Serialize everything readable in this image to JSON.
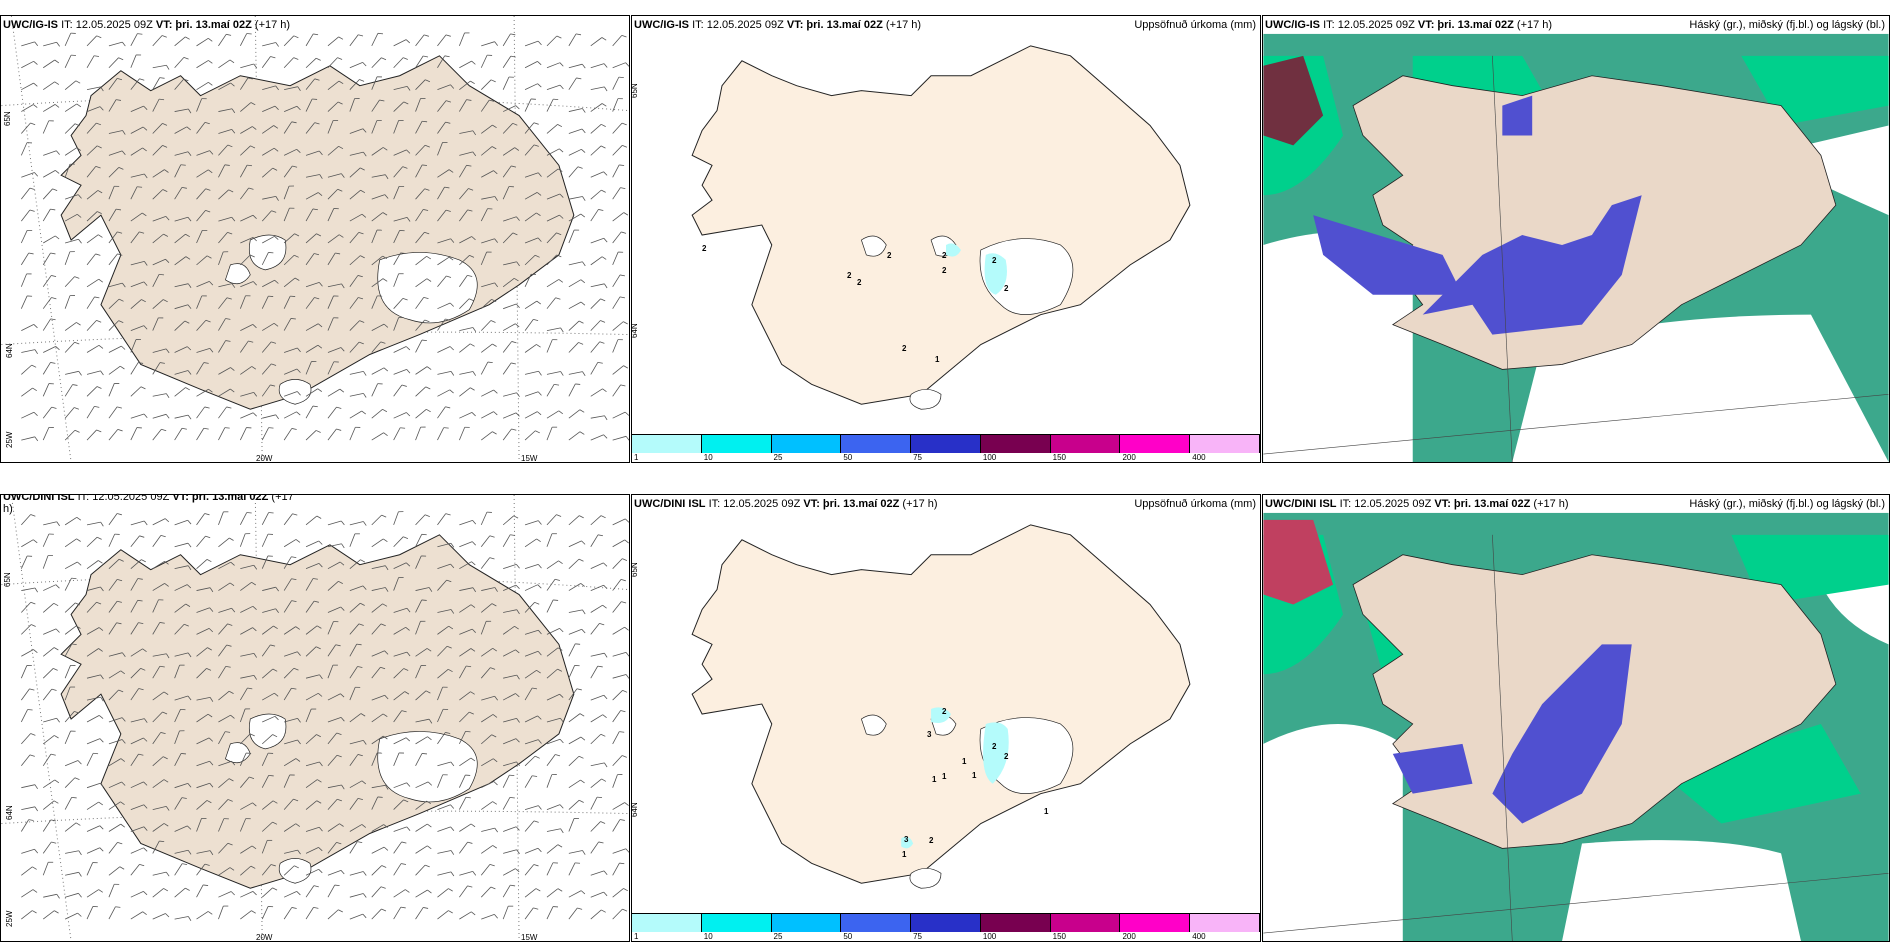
{
  "panels": {
    "top_wind": {
      "model": "UWC/IG-IS",
      "it": "IT: 12.05.2025 09Z",
      "vt": "VT: þri. 13.maí 02Z",
      "lead": "(+17 h)",
      "lon_labels": [
        "20W",
        "15W"
      ],
      "lat_labels": [
        "65N",
        "64N",
        "25W"
      ]
    },
    "top_precip": {
      "model": "UWC/IG-IS",
      "it": "IT: 12.05.2025 09Z",
      "vt": "VT: þri. 13.maí 02Z",
      "lead": "(+17 h)",
      "right_title": "Uppsöfnuð úrkoma (mm)",
      "lat_labels": [
        "65N",
        "64N"
      ],
      "values": [
        "2",
        "2",
        "2",
        "2",
        "2",
        "2",
        "2",
        "2",
        "1",
        "2"
      ]
    },
    "top_cloud": {
      "model": "UWC/IG-IS",
      "it": "IT: 12.05.2025 09Z",
      "vt": "VT: þri. 13.maí 02Z",
      "lead": "(+17 h)",
      "right_title": "Háský (gr.), miðský (fj.bl.) og lágský (bl.)"
    },
    "bottom_wind": {
      "model": "UWC/DINI ISL",
      "it": "IT: 12.05.2025 09Z",
      "vt": "VT: þri. 13.maí 02Z",
      "lead": "(+17",
      "lead2": "h)",
      "lon_labels": [
        "20W",
        "15W"
      ],
      "lat_labels": [
        "65N",
        "64N",
        "25W"
      ]
    },
    "bottom_precip": {
      "model": "UWC/DINI ISL",
      "it": "IT: 12.05.2025 09Z",
      "vt": "VT: þri. 13.maí 02Z",
      "lead": "(+17 h)",
      "right_title": "Uppsöfnuð úrkoma (mm)",
      "lat_labels": [
        "65N",
        "64N"
      ],
      "values": [
        "2",
        "3",
        "2",
        "1",
        "1",
        "1",
        "1",
        "1",
        "3",
        "2",
        "1",
        "2"
      ]
    },
    "bottom_cloud": {
      "model": "UWC/DINI ISL",
      "it": "IT: 12.05.2025 09Z",
      "vt": "VT: þri. 13.maí 02Z",
      "lead": "(+17 h)",
      "right_title": "Háský (gr.), miðský (fj.bl.) og lágský (bl.)"
    }
  },
  "legend": {
    "labels": [
      "1",
      "10",
      "25",
      "50",
      "75",
      "100",
      "150",
      "200",
      "400"
    ],
    "colors": [
      "#b4fbfb",
      "#00f0f0",
      "#00c0ff",
      "#3c64f0",
      "#2830c8",
      "#780050",
      "#c8008c",
      "#ff00c8",
      "#f8b4f8"
    ]
  },
  "colors": {
    "land_wind": "#ede0d1",
    "land_precip": "#fcefe0",
    "land_cloud": "#ead8c8",
    "cloud_high": "#3ca88c",
    "cloud_mid": "#00d08c",
    "cloud_low": "#5050d0"
  }
}
